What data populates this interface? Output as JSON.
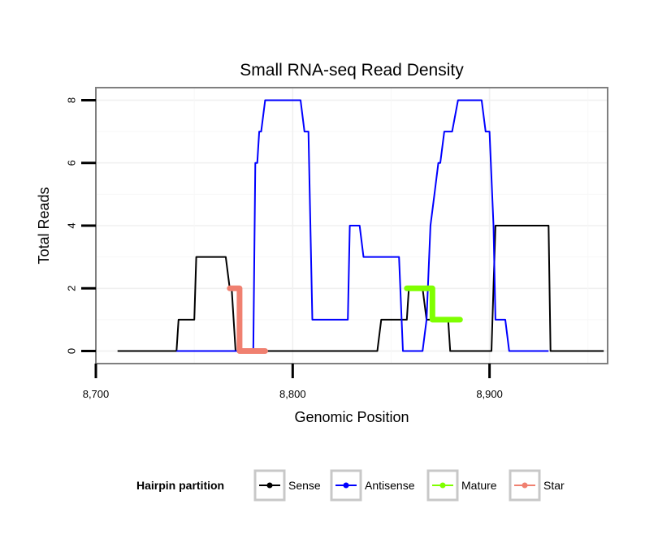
{
  "chart_data": {
    "type": "line",
    "title": "Small RNA-seq Read Density",
    "xlabel": "Genomic Position",
    "ylabel": "Total Reads",
    "xlim": [
      8700,
      8960
    ],
    "ylim": [
      -0.4,
      8.4
    ],
    "x_ticks": [
      8700,
      8800,
      8900
    ],
    "x_tick_labels": [
      "8,700",
      "8,800",
      "8,900"
    ],
    "y_ticks": [
      0,
      2,
      4,
      6,
      8
    ],
    "y_tick_labels": [
      "0",
      "2",
      "4",
      "6",
      "8"
    ],
    "grid": true,
    "legend_position": "bottom",
    "legend_title": "Hairpin partition",
    "series": [
      {
        "name": "Sense",
        "color": "#000000",
        "style": "line",
        "points": [
          [
            8711,
            0
          ],
          [
            8741,
            0
          ],
          [
            8742,
            1
          ],
          [
            8750,
            1
          ],
          [
            8751,
            3
          ],
          [
            8766,
            3
          ],
          [
            8768,
            2
          ],
          [
            8769,
            2
          ],
          [
            8771,
            0
          ],
          [
            8843,
            0
          ],
          [
            8845,
            1
          ],
          [
            8858,
            1
          ],
          [
            8859,
            2
          ],
          [
            8866,
            2
          ],
          [
            8868,
            1
          ],
          [
            8879,
            1
          ],
          [
            8880,
            0
          ],
          [
            8901,
            0
          ],
          [
            8903,
            4
          ],
          [
            8930,
            4
          ],
          [
            8931,
            0
          ],
          [
            8958,
            0
          ]
        ]
      },
      {
        "name": "Antisense",
        "color": "#0000ff",
        "style": "line",
        "points": [
          [
            8741,
            0
          ],
          [
            8780,
            0
          ],
          [
            8781,
            6
          ],
          [
            8782,
            6
          ],
          [
            8783,
            7
          ],
          [
            8784,
            7
          ],
          [
            8786,
            8
          ],
          [
            8804,
            8
          ],
          [
            8806,
            7
          ],
          [
            8808,
            7
          ],
          [
            8810,
            1
          ],
          [
            8828,
            1
          ],
          [
            8829,
            4
          ],
          [
            8834,
            4
          ],
          [
            8836,
            3
          ],
          [
            8854,
            3
          ],
          [
            8856,
            0
          ],
          [
            8866,
            0
          ],
          [
            8868,
            1
          ],
          [
            8870,
            4
          ],
          [
            8872,
            5
          ],
          [
            8874,
            6
          ],
          [
            8875,
            6
          ],
          [
            8877,
            7
          ],
          [
            8881,
            7
          ],
          [
            8884,
            8
          ],
          [
            8896,
            8
          ],
          [
            8898,
            7
          ],
          [
            8900,
            7
          ],
          [
            8902,
            4
          ],
          [
            8903,
            1
          ],
          [
            8908,
            1
          ],
          [
            8910,
            0
          ],
          [
            8930,
            0
          ]
        ]
      },
      {
        "name": "Mature",
        "color": "#7fff00",
        "style": "segment",
        "points": [
          [
            8858,
            2
          ],
          [
            8871,
            2
          ],
          [
            8871,
            1
          ],
          [
            8885,
            1
          ]
        ]
      },
      {
        "name": "Star",
        "color": "#f08070",
        "style": "segment",
        "points": [
          [
            8768,
            2
          ],
          [
            8773,
            2
          ],
          [
            8773,
            0
          ],
          [
            8786,
            0
          ]
        ]
      }
    ]
  }
}
